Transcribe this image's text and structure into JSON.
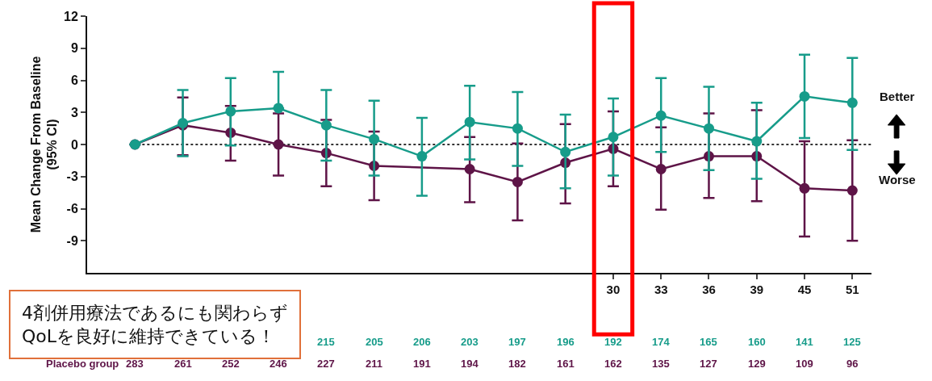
{
  "chart_data": {
    "type": "line",
    "ylabel": "Mean Change From Baseline\n(95% CI)",
    "categories": [
      null,
      null,
      null,
      null,
      null,
      null,
      null,
      null,
      null,
      null,
      "30",
      "33",
      "36",
      "39",
      "45",
      "51"
    ],
    "series": [
      {
        "color": "#179c8a",
        "values": [
          0,
          2.0,
          3.1,
          3.4,
          1.8,
          0.5,
          -1.1,
          2.1,
          1.5,
          -0.7,
          0.7,
          2.7,
          1.5,
          0.3,
          4.5,
          3.9
        ],
        "errors": [
          null,
          [
            -1.1,
            5.1
          ],
          [
            -0.1,
            6.2
          ],
          [
            3.4,
            6.8
          ],
          [
            -1.5,
            5.1
          ],
          [
            -2.9,
            4.1
          ],
          [
            -4.8,
            2.5
          ],
          [
            -1.4,
            5.5
          ],
          [
            -2.0,
            4.9
          ],
          [
            -4.1,
            2.8
          ],
          [
            -2.9,
            4.3
          ],
          [
            -0.7,
            6.2
          ],
          [
            -2.4,
            5.4
          ],
          [
            -3.2,
            3.9
          ],
          [
            0.6,
            8.4
          ],
          [
            -0.5,
            8.1
          ]
        ]
      },
      {
        "name": "Placebo group",
        "color": "#5e1447",
        "values": [
          0,
          1.8,
          1.1,
          0.0,
          -0.8,
          -2.0,
          null,
          -2.3,
          -3.5,
          -1.7,
          -0.4,
          -2.3,
          -1.1,
          -1.1,
          -4.1,
          -4.3
        ],
        "errors": [
          null,
          [
            -1.0,
            4.4
          ],
          [
            -1.5,
            3.6
          ],
          [
            -2.9,
            2.9
          ],
          [
            -3.9,
            2.3
          ],
          [
            -5.2,
            1.2
          ],
          null,
          [
            -5.4,
            0.7
          ],
          [
            -7.1,
            0.1
          ],
          [
            -5.5,
            1.9
          ],
          [
            -3.9,
            3.1
          ],
          [
            -6.1,
            1.6
          ],
          [
            -5.0,
            2.9
          ],
          [
            -5.3,
            3.2
          ],
          [
            -8.6,
            0.3
          ],
          [
            -9.0,
            0.4
          ]
        ]
      }
    ],
    "ylim": [
      -12,
      12
    ],
    "yticks": [
      -9,
      -6,
      -3,
      0,
      3,
      6,
      9,
      12
    ],
    "marker": "circle",
    "legend": false,
    "ref_lines": [
      {
        "axis": "y",
        "value": 0,
        "line_style": "dotted",
        "color": "#333333"
      }
    ],
    "annotations": [
      "4剤併用療法であるにも関わらず\nQoLを良好に維持できている！",
      "Better",
      "Worse",
      "283",
      "261",
      "252",
      "246",
      "227",
      "211",
      "191",
      "194",
      "182",
      "161",
      "162",
      "135",
      "127",
      "129",
      "109",
      "96",
      "215",
      "205",
      "206",
      "203",
      "197",
      "196",
      "192",
      "174",
      "165",
      "160",
      "141",
      "125"
    ]
  }
}
